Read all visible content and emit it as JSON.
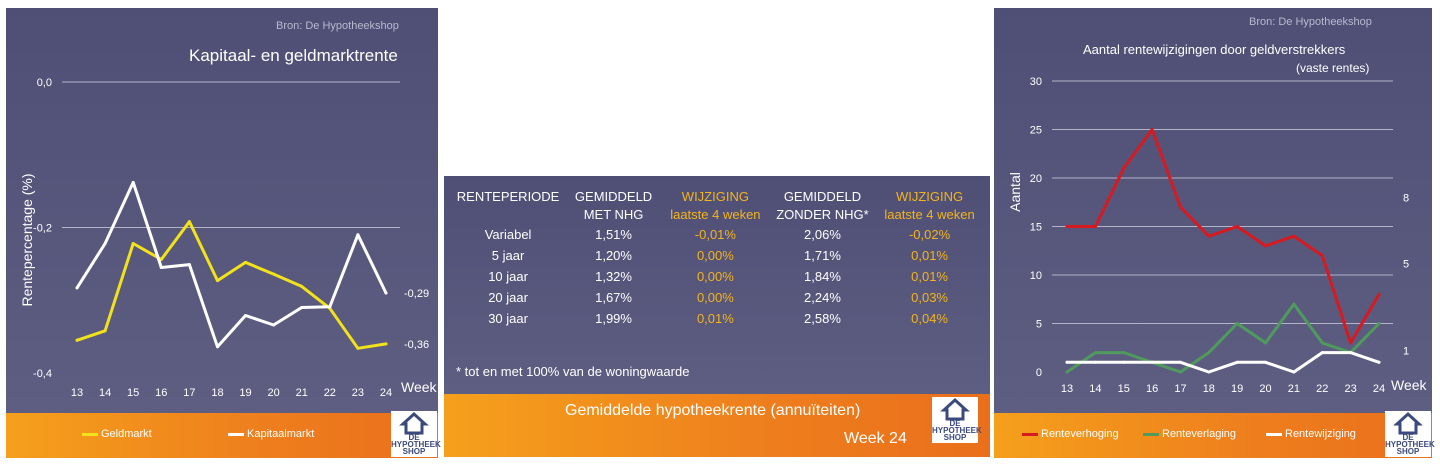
{
  "source_label": "Bron: De Hypotheekshop",
  "logo": {
    "line1": "DE",
    "line2": "HYPOTHEEK",
    "line3": "SHOP"
  },
  "left_chart": {
    "title": "Kapitaal- en geldmarktrente",
    "ylabel": "Rentepercentage (%)",
    "xlabel": "Week",
    "chart_data": {
      "type": "line",
      "title": "Kapitaal- en geldmarktrente",
      "xlabel": "Week",
      "ylabel": "Rentepercentage (%)",
      "x": [
        13,
        14,
        15,
        16,
        17,
        18,
        19,
        20,
        21,
        22,
        23,
        24
      ],
      "ylim": [
        -0.4,
        0.0
      ],
      "yticks": [
        "0,0",
        "-0,2",
        "-0,4"
      ],
      "ytick_values": [
        0.0,
        -0.2,
        -0.4
      ],
      "series": [
        {
          "name": "Geldmarkt",
          "color": "#f2e21a",
          "values": [
            -0.355,
            -0.342,
            -0.222,
            -0.244,
            -0.192,
            -0.273,
            -0.248,
            -0.264,
            -0.281,
            -0.311,
            -0.366,
            -0.36
          ],
          "end_label": "-0,36"
        },
        {
          "name": "Kapitaalmarkt",
          "color": "#ffffff",
          "values": [
            -0.283,
            -0.222,
            -0.138,
            -0.255,
            -0.251,
            -0.364,
            -0.321,
            -0.334,
            -0.31,
            -0.309,
            -0.21,
            -0.29
          ],
          "end_label": "-0,29"
        }
      ],
      "grid": true,
      "legend": "bottom"
    }
  },
  "table": {
    "headers": [
      {
        "l1": "RENTEPERIODE",
        "l2": ""
      },
      {
        "l1": "GEMIDDELD",
        "l2": "MET NHG"
      },
      {
        "l1": "WIJZIGING",
        "l2": "laatste 4 weken"
      },
      {
        "l1": "GEMIDDELD",
        "l2": "ZONDER NHG*"
      },
      {
        "l1": "WIJZIGING",
        "l2": "laatste 4 weken"
      }
    ],
    "rows": [
      [
        "Variabel",
        "1,51%",
        "-0,01%",
        "2,06%",
        "-0,02%"
      ],
      [
        "5 jaar",
        "1,20%",
        "0,00%",
        "1,71%",
        "0,01%"
      ],
      [
        "10 jaar",
        "1,32%",
        "0,00%",
        "1,84%",
        "0,01%"
      ],
      [
        "20 jaar",
        "1,67%",
        "0,00%",
        "2,24%",
        "0,03%"
      ],
      [
        "30 jaar",
        "1,99%",
        "0,01%",
        "2,58%",
        "0,04%"
      ]
    ],
    "footnote": "* tot en met 100% van de woningwaarde",
    "banner_title": "Gemiddelde hypotheekrente (annuïteiten)",
    "banner_week": "Week 24"
  },
  "right_chart": {
    "title": "Aantal rentewijzigingen door geldverstrekkers",
    "subtitle": "(vaste rentes)",
    "ylabel": "Aantal",
    "xlabel": "Week",
    "chart_data": {
      "type": "line",
      "title": "Aantal rentewijzigingen door geldverstrekkers",
      "subtitle": "(vaste rentes)",
      "xlabel": "Week",
      "ylabel": "Aantal",
      "x": [
        13,
        14,
        15,
        16,
        17,
        18,
        19,
        20,
        21,
        22,
        23,
        24
      ],
      "ylim": [
        0,
        30
      ],
      "yticks": [
        0,
        5,
        10,
        15,
        20,
        25,
        30
      ],
      "series": [
        {
          "name": "Renteverhoging",
          "color": "#d71920",
          "values": [
            15,
            15,
            21,
            25,
            17,
            14,
            15,
            13,
            14,
            12,
            3,
            8
          ],
          "end_label": "8"
        },
        {
          "name": "Renteverlaging",
          "color": "#4f9a5c",
          "values": [
            0,
            2,
            2,
            1,
            0,
            2,
            5,
            3,
            7,
            3,
            2,
            5
          ],
          "end_label": "5"
        },
        {
          "name": "Rentewijziging",
          "color": "#ffffff",
          "values": [
            1,
            1,
            1,
            1,
            1,
            0,
            1,
            1,
            0,
            2,
            2,
            1
          ],
          "end_label": "1"
        }
      ],
      "grid": true,
      "legend": "bottom"
    }
  }
}
